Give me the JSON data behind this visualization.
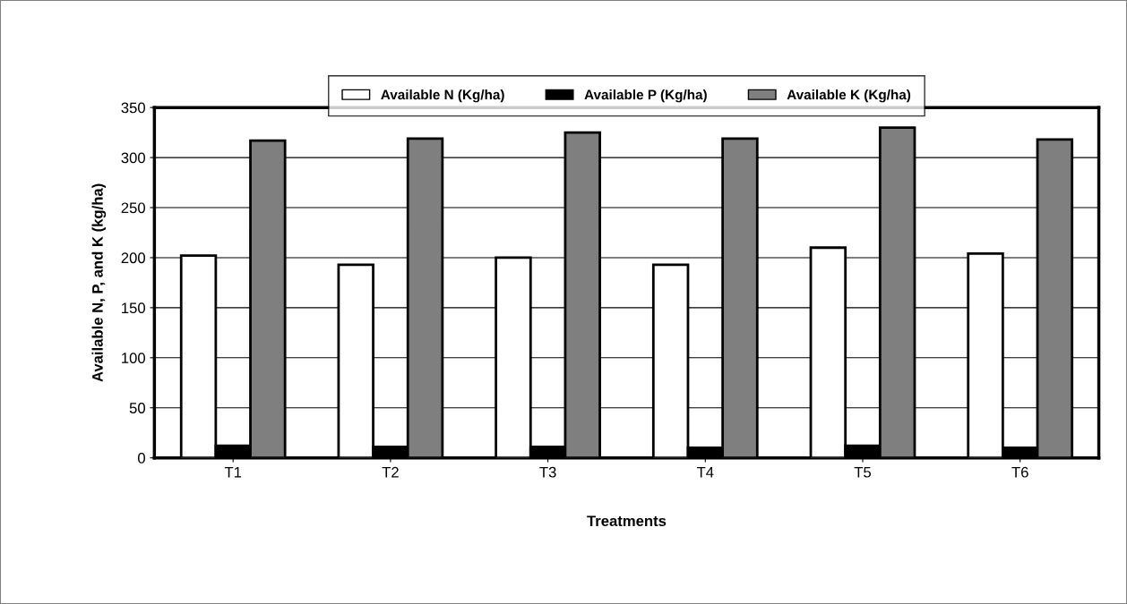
{
  "chart_data": {
    "type": "bar",
    "xlabel": "Treatments",
    "ylabel": "Available N, P, and K (kg/ha)",
    "categories": [
      "T1",
      "T2",
      "T3",
      "T4",
      "T5",
      "T6"
    ],
    "series": [
      {
        "name": "Available N (Kg/ha)",
        "color": "#ffffff",
        "values": [
          202,
          193,
          200,
          193,
          210,
          204
        ]
      },
      {
        "name": "Available P (Kg/ha)",
        "color": "#000000",
        "values": [
          12,
          11,
          11,
          10,
          12,
          10
        ]
      },
      {
        "name": "Available K (Kg/ha)",
        "color": "#7f7f7f",
        "values": [
          317,
          319,
          325,
          319,
          330,
          318
        ]
      }
    ],
    "ylim": [
      0,
      350
    ],
    "yticks": [
      0,
      50,
      100,
      150,
      200,
      250,
      300,
      350
    ],
    "grid": "y",
    "legend": "top"
  }
}
